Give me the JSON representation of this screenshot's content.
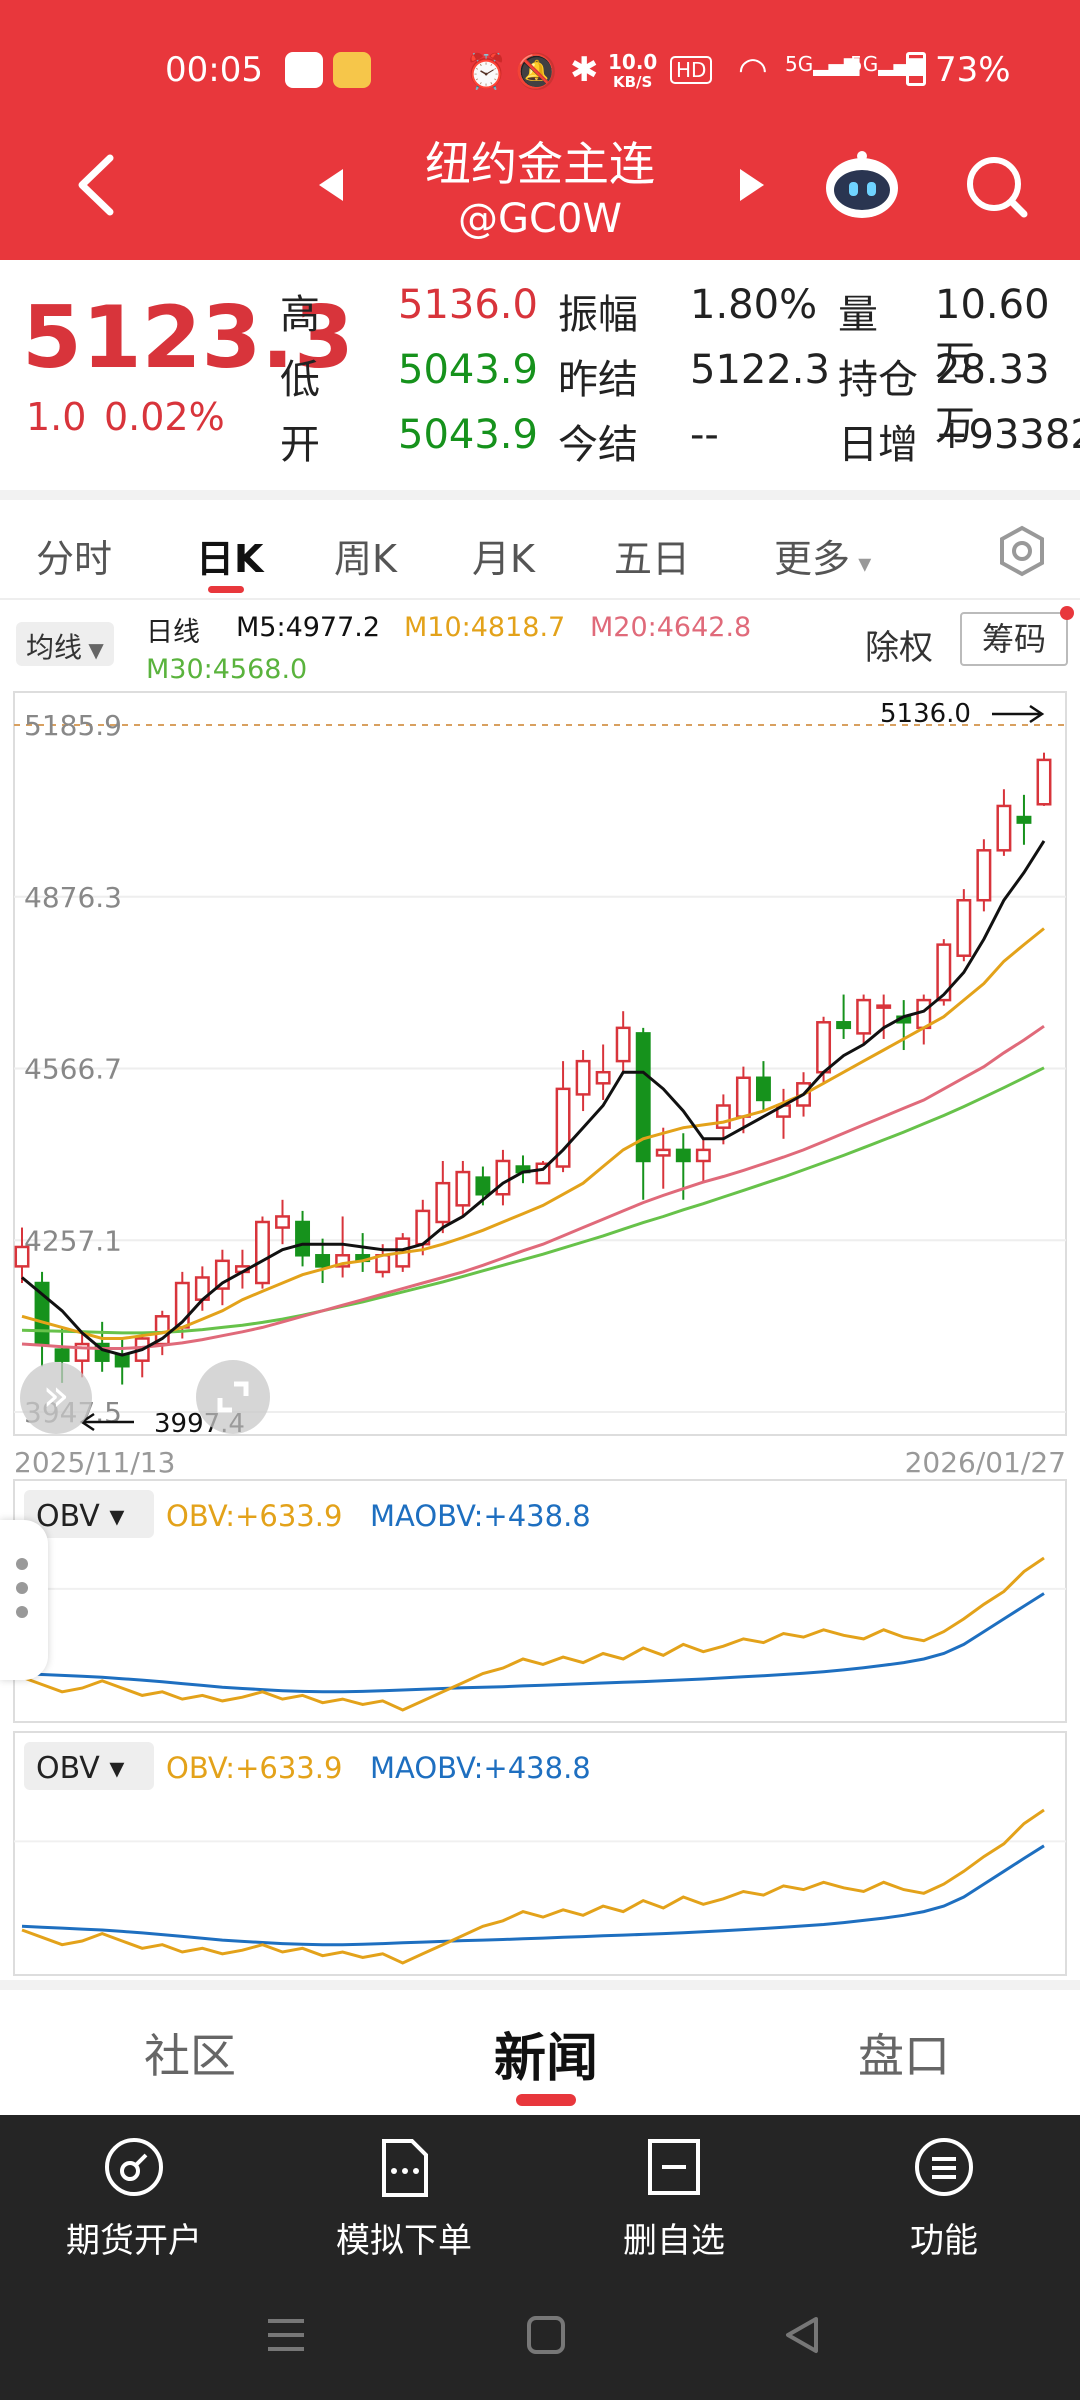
{
  "status_bar": {
    "time": "00:05",
    "net_speed_top": "10.0",
    "net_speed_bottom": "KB/S",
    "hd": "HD",
    "sig1": "5G",
    "sig2": "5G",
    "battery": "73%"
  },
  "header": {
    "title": "纽约金主连",
    "subtitle": "@GC0W"
  },
  "quote": {
    "price": "5123.3",
    "change": "1.0",
    "change_pct": "0.02%",
    "rows": [
      {
        "l1": "高",
        "v1": "5136.0",
        "l2": "振幅",
        "v2": "1.80%",
        "l3": "量",
        "v3": "10.60万"
      },
      {
        "l1": "低",
        "v1": "5043.9",
        "l2": "昨结",
        "v2": "5122.3",
        "l3": "持仓",
        "v3": "28.33万"
      },
      {
        "l1": "开",
        "v1": "5043.9",
        "l2": "今结",
        "v2": "--",
        "l3": "日增",
        "v3": "+93382"
      }
    ]
  },
  "tabs": [
    "分时",
    "日K",
    "周K",
    "月K",
    "五日",
    "更多"
  ],
  "ma_legend": {
    "selector": "均线",
    "type": "日线",
    "m5": "M5:4977.2",
    "m10": "M10:4818.7",
    "m20": "M20:4642.8",
    "m30": "M30:4568.0",
    "chuquan": "除权",
    "chouma": "筹码"
  },
  "chart_data": {
    "type": "candlestick",
    "y_ticks": [
      "5185.9",
      "4876.3",
      "4566.7",
      "4257.1",
      "3947.5"
    ],
    "ylim": [
      3947.5,
      5185.9
    ],
    "x_start": "2025/11/13",
    "x_end": "2026/01/27",
    "high_label": "5136.0",
    "low_label": "3997.4",
    "candles": [
      [
        4210,
        4280,
        4180,
        4245
      ],
      [
        4180,
        4200,
        4030,
        4070
      ],
      [
        4060,
        4100,
        4000,
        4040
      ],
      [
        4040,
        4090,
        4010,
        4070
      ],
      [
        4070,
        4110,
        4020,
        4040
      ],
      [
        4050,
        4080,
        3997,
        4030
      ],
      [
        4040,
        4090,
        4010,
        4080
      ],
      [
        4070,
        4130,
        4050,
        4120
      ],
      [
        4100,
        4200,
        4080,
        4180
      ],
      [
        4150,
        4210,
        4130,
        4190
      ],
      [
        4170,
        4240,
        4140,
        4220
      ],
      [
        4200,
        4240,
        4170,
        4210
      ],
      [
        4180,
        4300,
        4170,
        4290
      ],
      [
        4280,
        4330,
        4250,
        4300
      ],
      [
        4290,
        4310,
        4210,
        4230
      ],
      [
        4230,
        4260,
        4180,
        4210
      ],
      [
        4210,
        4300,
        4190,
        4230
      ],
      [
        4230,
        4270,
        4200,
        4220
      ],
      [
        4200,
        4250,
        4190,
        4230
      ],
      [
        4210,
        4270,
        4200,
        4260
      ],
      [
        4250,
        4330,
        4230,
        4310
      ],
      [
        4290,
        4400,
        4270,
        4360
      ],
      [
        4320,
        4400,
        4300,
        4380
      ],
      [
        4370,
        4390,
        4320,
        4340
      ],
      [
        4340,
        4420,
        4320,
        4400
      ],
      [
        4390,
        4410,
        4360,
        4380
      ],
      [
        4360,
        4400,
        4360,
        4395
      ],
      [
        4390,
        4580,
        4380,
        4530
      ],
      [
        4520,
        4600,
        4490,
        4580
      ],
      [
        4540,
        4610,
        4510,
        4560
      ],
      [
        4580,
        4670,
        4560,
        4640
      ],
      [
        4630,
        4640,
        4330,
        4400
      ],
      [
        4410,
        4460,
        4350,
        4420
      ],
      [
        4420,
        4450,
        4330,
        4400
      ],
      [
        4400,
        4440,
        4360,
        4420
      ],
      [
        4460,
        4520,
        4430,
        4500
      ],
      [
        4480,
        4570,
        4450,
        4550
      ],
      [
        4550,
        4580,
        4490,
        4510
      ],
      [
        4480,
        4530,
        4440,
        4500
      ],
      [
        4500,
        4560,
        4480,
        4540
      ],
      [
        4560,
        4660,
        4540,
        4650
      ],
      [
        4650,
        4700,
        4620,
        4640
      ],
      [
        4630,
        4700,
        4610,
        4690
      ],
      [
        4680,
        4700,
        4620,
        4680
      ],
      [
        4660,
        4690,
        4600,
        4650
      ],
      [
        4640,
        4700,
        4610,
        4690
      ],
      [
        4690,
        4800,
        4680,
        4790
      ],
      [
        4770,
        4890,
        4760,
        4870
      ],
      [
        4870,
        4980,
        4850,
        4960
      ],
      [
        4960,
        5070,
        4950,
        5040
      ],
      [
        5020,
        5060,
        4970,
        5010
      ],
      [
        5043,
        5136,
        5040,
        5123
      ]
    ],
    "ma5": [
      4190,
      4160,
      4130,
      4090,
      4060,
      4050,
      4060,
      4080,
      4110,
      4150,
      4180,
      4200,
      4220,
      4240,
      4250,
      4250,
      4250,
      4245,
      4240,
      4240,
      4250,
      4280,
      4300,
      4330,
      4360,
      4380,
      4385,
      4420,
      4460,
      4500,
      4560,
      4560,
      4530,
      4490,
      4440,
      4440,
      4460,
      4480,
      4500,
      4520,
      4560,
      4590,
      4610,
      4640,
      4660,
      4670,
      4700,
      4740,
      4800,
      4870,
      4920,
      4977
    ],
    "ma10": [
      4120,
      4110,
      4100,
      4090,
      4080,
      4080,
      4085,
      4090,
      4100,
      4115,
      4130,
      4150,
      4165,
      4180,
      4195,
      4205,
      4215,
      4220,
      4230,
      4235,
      4240,
      4250,
      4262,
      4275,
      4290,
      4305,
      4320,
      4340,
      4360,
      4390,
      4420,
      4440,
      4450,
      4460,
      4465,
      4470,
      4480,
      4490,
      4505,
      4520,
      4540,
      4560,
      4580,
      4600,
      4620,
      4640,
      4660,
      4690,
      4720,
      4760,
      4790,
      4819
    ],
    "ma20": [
      4070,
      4068,
      4065,
      4063,
      4062,
      4062,
      4064,
      4068,
      4072,
      4078,
      4085,
      4092,
      4100,
      4110,
      4120,
      4130,
      4140,
      4150,
      4160,
      4170,
      4180,
      4190,
      4200,
      4212,
      4225,
      4238,
      4250,
      4265,
      4280,
      4295,
      4310,
      4325,
      4338,
      4350,
      4362,
      4372,
      4383,
      4395,
      4407,
      4420,
      4435,
      4450,
      4465,
      4480,
      4495,
      4510,
      4530,
      4550,
      4570,
      4595,
      4618,
      4643
    ],
    "ma30": [
      4095,
      4094,
      4093,
      4092,
      4091,
      4090,
      4090,
      4091,
      4093,
      4096,
      4100,
      4104,
      4109,
      4115,
      4122,
      4130,
      4138,
      4146,
      4155,
      4164,
      4173,
      4182,
      4192,
      4202,
      4212,
      4222,
      4232,
      4243,
      4254,
      4265,
      4277,
      4289,
      4300,
      4312,
      4323,
      4335,
      4347,
      4359,
      4371,
      4384,
      4397,
      4410,
      4424,
      4438,
      4452,
      4467,
      4482,
      4498,
      4515,
      4532,
      4550,
      4568
    ],
    "obv_panels": [
      {
        "selector": "OBV",
        "obv_label": "OBV:+633.9",
        "maobv_label": "MAOBV:+438.8"
      },
      {
        "selector": "OBV",
        "obv_label": "OBV:+633.9",
        "maobv_label": "MAOBV:+438.8"
      }
    ],
    "obv": [
      -20,
      -60,
      -100,
      -80,
      -40,
      -80,
      -120,
      -100,
      -140,
      -120,
      -150,
      -130,
      -100,
      -140,
      -120,
      -160,
      -140,
      -170,
      -150,
      -200,
      -150,
      -100,
      -50,
      0,
      30,
      80,
      50,
      90,
      60,
      110,
      80,
      140,
      100,
      160,
      120,
      150,
      190,
      170,
      220,
      200,
      240,
      210,
      190,
      240,
      200,
      180,
      230,
      300,
      380,
      450,
      560,
      634
    ],
    "maobv": [
      0,
      -5,
      -10,
      -15,
      -20,
      -28,
      -36,
      -45,
      -55,
      -65,
      -75,
      -82,
      -88,
      -94,
      -98,
      -100,
      -100,
      -98,
      -94,
      -90,
      -86,
      -82,
      -78,
      -75,
      -72,
      -68,
      -64,
      -60,
      -56,
      -52,
      -48,
      -44,
      -40,
      -35,
      -30,
      -24,
      -18,
      -12,
      -5,
      2,
      10,
      20,
      32,
      45,
      60,
      80,
      110,
      160,
      230,
      300,
      370,
      439
    ]
  },
  "colors": {
    "header": "#e8373c",
    "up": "#d8343b",
    "down": "#16921c",
    "ma5": "#111111",
    "ma10": "#e3a21a",
    "ma20": "#e06a7a",
    "ma30": "#67c24a",
    "obv": "#e3a21a",
    "maobv": "#1e6fc0"
  },
  "lower_tabs": [
    "社区",
    "新闻",
    "盘口"
  ],
  "bottom_bar": [
    {
      "icon": "futures-account-icon",
      "label": "期货开户"
    },
    {
      "icon": "simulate-order-icon",
      "label": "模拟下单"
    },
    {
      "icon": "remove-watchlist-icon",
      "label": "删自选"
    },
    {
      "icon": "functions-icon",
      "label": "功能"
    }
  ]
}
